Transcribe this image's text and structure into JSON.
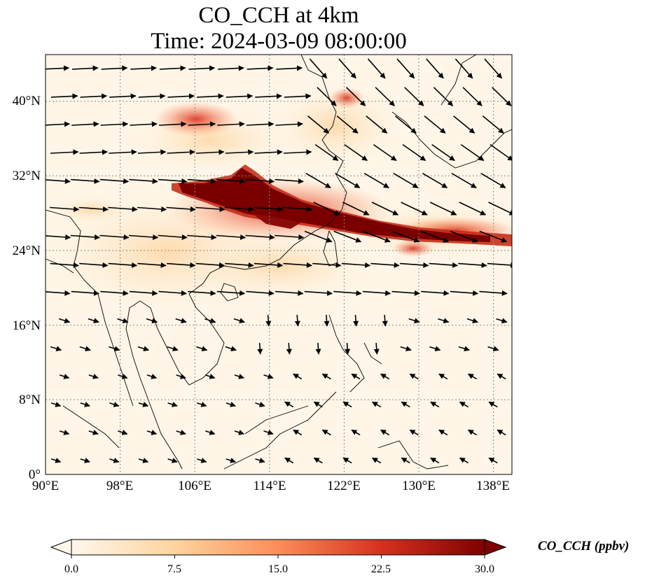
{
  "title": {
    "line1": "CO_CCH at 4km",
    "line2": "Time: 2024-03-09 08:00:00"
  },
  "map": {
    "extent": {
      "lon": [
        90,
        140
      ],
      "lat": [
        0,
        45
      ]
    },
    "lat_ticks": [
      {
        "value": 0,
        "label": "0°"
      },
      {
        "value": 8,
        "label": "8°N"
      },
      {
        "value": 16,
        "label": "16°N"
      },
      {
        "value": 24,
        "label": "24°N"
      },
      {
        "value": 32,
        "label": "32°N"
      },
      {
        "value": 40,
        "label": "40°N"
      }
    ],
    "lon_ticks": [
      {
        "value": 90,
        "label": "90°E"
      },
      {
        "value": 98,
        "label": "98°E"
      },
      {
        "value": 106,
        "label": "106°E"
      },
      {
        "value": 114,
        "label": "114°E"
      },
      {
        "value": 122,
        "label": "122°E"
      },
      {
        "value": 130,
        "label": "130°E"
      },
      {
        "value": 138,
        "label": "138°E"
      }
    ],
    "gridlines": "dotted",
    "background_color": "#fff6e8",
    "plume_color": "#7a0000"
  },
  "colorbar": {
    "label": "CO_CCH (ppbv)",
    "ticks": [
      "0.0",
      "7.5",
      "15.0",
      "22.5",
      "30.0"
    ],
    "range": [
      0,
      30
    ],
    "colormap": "OrRd",
    "extend": "both",
    "colors": [
      "#fff7ec",
      "#fdd49e",
      "#fc8d59",
      "#d7301f",
      "#7f0000"
    ]
  }
}
